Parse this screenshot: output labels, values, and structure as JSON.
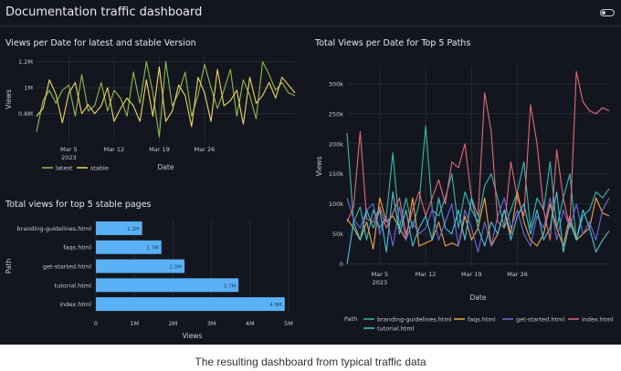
{
  "app": {
    "title": "Documentation traffic dashboard"
  },
  "caption": "The resulting dashboard from typical traffic data",
  "colors": {
    "background": "#14161f",
    "grid": "#2b2e3a",
    "text": "#c9cbd3",
    "latest": "#8dbb50",
    "stable": "#f2d660",
    "bar": "#5ab1f6",
    "branding": "#3cb7ad",
    "faqs": "#f0a54a",
    "get_started": "#6d6ad8",
    "index": "#e36a78",
    "tutorial": "#45c4d6"
  },
  "chart_data": [
    {
      "id": "version",
      "type": "line",
      "title": "Views per Date for latest and stable Version",
      "xlabel": "Date",
      "ylabel": "Views",
      "x_ticks": [
        "Mar 5",
        "Mar 12",
        "Mar 19",
        "Mar 26"
      ],
      "x_sub": "2023",
      "y_ticks": [
        "1.2M",
        "1M",
        "0.8M"
      ],
      "y_tick_values": [
        1.2,
        1.0,
        0.8
      ],
      "ylim": [
        0.58,
        1.24
      ],
      "xlim": [
        0,
        40
      ],
      "x_tick_positions": [
        5,
        12,
        19,
        26
      ],
      "legend_position": "bottom-left",
      "series": [
        {
          "name": "latest",
          "color_key": "latest",
          "values": [
            0.66,
            0.9,
            0.98,
            0.88,
            0.98,
            1.02,
            0.78,
            1.1,
            0.82,
            0.86,
            1.04,
            0.82,
            0.98,
            0.92,
            0.78,
            1.12,
            0.88,
            1.2,
            0.96,
            0.62,
            1.2,
            0.86,
            0.96,
            1.12,
            0.78,
            0.94,
            1.18,
            1.0,
            0.84,
            0.98,
            1.14,
            0.78,
            1.06,
            0.94,
            0.76,
            1.2,
            1.1,
            0.98,
            1.04,
            0.96,
            0.94
          ]
        },
        {
          "name": "stable",
          "color_key": "stable",
          "values": [
            0.78,
            0.84,
            1.06,
            0.95,
            0.73,
            0.96,
            1.04,
            0.8,
            0.87,
            0.8,
            0.86,
            1.0,
            0.74,
            0.84,
            0.92,
            0.86,
            0.74,
            1.06,
            0.78,
            1.16,
            0.74,
            0.82,
            1.02,
            0.94,
            0.7,
            1.08,
            0.96,
            0.74,
            1.14,
            0.86,
            0.9,
            0.98,
            0.72,
            1.08,
            0.88,
            0.94,
            1.04,
            0.92,
            1.08,
            1.02,
            0.96
          ]
        }
      ]
    },
    {
      "id": "stable_pages",
      "type": "bar",
      "orientation": "horizontal",
      "title": "Total views for top 5 stable pages",
      "xlabel": "Views",
      "ylabel": "Path",
      "categories": [
        "branding-guidelines.html",
        "faqs.html",
        "get-started.html",
        "tutorial.html",
        "index.html"
      ],
      "values": [
        1.2,
        1.7,
        2.3,
        3.7,
        4.9
      ],
      "data_labels": [
        "1.2M",
        "1.7M",
        "2.3M",
        "3.7M",
        "4.9M"
      ],
      "x_ticks": [
        "0",
        "1M",
        "2M",
        "3M",
        "4M",
        "5M"
      ],
      "x_tick_values": [
        0,
        1,
        2,
        3,
        4,
        5
      ],
      "xlim": [
        0,
        5
      ]
    },
    {
      "id": "top_paths",
      "type": "line",
      "title": "Total Views per Date for Top 5 Paths",
      "xlabel": "Date",
      "ylabel": "Views",
      "x_ticks": [
        "Mar 5",
        "Mar 12",
        "Mar 19",
        "Mar 26"
      ],
      "x_sub": "2023",
      "y_ticks": [
        "0",
        "50k",
        "100k",
        "150k",
        "200k",
        "250k",
        "300k"
      ],
      "y_tick_values": [
        0,
        50,
        100,
        150,
        200,
        250,
        300
      ],
      "ylim": [
        -5,
        330
      ],
      "xlim": [
        0,
        40
      ],
      "x_tick_positions": [
        5,
        12,
        19,
        26
      ],
      "legend_title": "Path",
      "legend_position": "bottom",
      "series": [
        {
          "name": "branding-guidelines.html",
          "color_key": "branding",
          "values": [
            218,
            70,
            95,
            40,
            90,
            60,
            80,
            185,
            60,
            110,
            60,
            100,
            230,
            90,
            80,
            110,
            150,
            60,
            120,
            90,
            70,
            130,
            150,
            110,
            60,
            90,
            120,
            170,
            60,
            110,
            90,
            170,
            60,
            110,
            150,
            40,
            80,
            90,
            120,
            110,
            125
          ]
        },
        {
          "name": "faqs.html",
          "color_key": "faqs",
          "values": [
            75,
            60,
            40,
            70,
            25,
            110,
            70,
            80,
            60,
            40,
            110,
            30,
            35,
            40,
            70,
            30,
            35,
            30,
            80,
            40,
            60,
            110,
            30,
            50,
            90,
            50,
            120,
            70,
            40,
            30,
            50,
            100,
            60,
            30,
            80,
            40,
            50,
            60,
            110,
            85,
            80
          ]
        },
        {
          "name": "get-started.html",
          "color_key": "get_started",
          "values": [
            110,
            75,
            60,
            90,
            100,
            50,
            80,
            30,
            95,
            40,
            70,
            50,
            60,
            90,
            40,
            70,
            100,
            30,
            90,
            60,
            20,
            70,
            30,
            80,
            110,
            60,
            90,
            50,
            30,
            80,
            60,
            110,
            40,
            90,
            60,
            100,
            50,
            70,
            40,
            90,
            110
          ]
        },
        {
          "name": "index.html",
          "color_key": "index",
          "values": [
            70,
            95,
            220,
            75,
            70,
            95,
            60,
            85,
            110,
            50,
            90,
            120,
            80,
            110,
            140,
            100,
            170,
            160,
            200,
            110,
            80,
            285,
            220,
            70,
            60,
            170,
            110,
            80,
            265,
            200,
            90,
            40,
            190,
            110,
            60,
            320,
            270,
            255,
            250,
            260,
            255
          ]
        },
        {
          "name": "tutorial.html",
          "color_key": "tutorial",
          "values": [
            0,
            70,
            40,
            90,
            60,
            90,
            20,
            120,
            50,
            90,
            30,
            60,
            80,
            40,
            110,
            60,
            50,
            90,
            40,
            110,
            60,
            30,
            70,
            50,
            90,
            40,
            80,
            100,
            50,
            90,
            40,
            60,
            120,
            20,
            70,
            40,
            90,
            60,
            20,
            40,
            55
          ]
        }
      ]
    }
  ]
}
